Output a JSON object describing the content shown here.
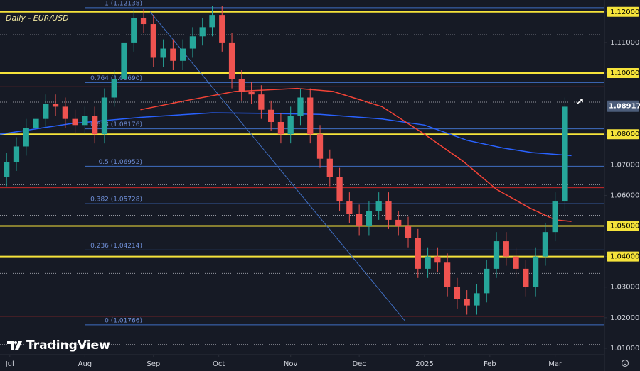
{
  "chart_data": {
    "type": "candlestick",
    "title": "Daily - EUR/USD",
    "watermark": "TradingView",
    "up_color": "#26a69a",
    "down_color": "#ef5350",
    "x": [
      0,
      3,
      6,
      9,
      12,
      15,
      18,
      21,
      24,
      27,
      30,
      33,
      36,
      39,
      42,
      45,
      48,
      51,
      54,
      57,
      60,
      63,
      66,
      69,
      72,
      75,
      78,
      81,
      84,
      87,
      90,
      93,
      96,
      99,
      102,
      105,
      108,
      111,
      114,
      117,
      120,
      123,
      126,
      129,
      132,
      135,
      138,
      141,
      144,
      147,
      150,
      153,
      156,
      159,
      162,
      165,
      168,
      171
    ],
    "open": [
      1.066,
      1.071,
      1.076,
      1.082,
      1.085,
      1.09,
      1.089,
      1.085,
      1.083,
      1.086,
      1.08,
      1.092,
      1.098,
      1.11,
      1.118,
      1.116,
      1.105,
      1.108,
      1.104,
      1.108,
      1.112,
      1.115,
      1.119,
      1.11,
      1.098,
      1.094,
      1.093,
      1.088,
      1.084,
      1.08,
      1.086,
      1.092,
      1.08,
      1.072,
      1.066,
      1.058,
      1.054,
      1.05,
      1.055,
      1.058,
      1.052,
      1.05,
      1.046,
      1.036,
      1.04,
      1.038,
      1.03,
      1.026,
      1.024,
      1.028,
      1.036,
      1.045,
      1.04,
      1.036,
      1.03,
      1.04,
      1.048,
      1.058
    ],
    "high": [
      1.074,
      1.079,
      1.085,
      1.088,
      1.093,
      1.093,
      1.092,
      1.088,
      1.089,
      1.089,
      1.095,
      1.101,
      1.113,
      1.121,
      1.121,
      1.119,
      1.111,
      1.111,
      1.111,
      1.115,
      1.118,
      1.122,
      1.122,
      1.113,
      1.101,
      1.097,
      1.096,
      1.091,
      1.087,
      1.089,
      1.095,
      1.095,
      1.083,
      1.075,
      1.069,
      1.061,
      1.057,
      1.058,
      1.061,
      1.061,
      1.055,
      1.053,
      1.049,
      1.043,
      1.043,
      1.041,
      1.033,
      1.029,
      1.031,
      1.039,
      1.048,
      1.048,
      1.043,
      1.039,
      1.043,
      1.051,
      1.061,
      1.092
    ],
    "low": [
      1.063,
      1.068,
      1.073,
      1.079,
      1.082,
      1.086,
      1.082,
      1.08,
      1.08,
      1.077,
      1.077,
      1.089,
      1.095,
      1.107,
      1.113,
      1.102,
      1.102,
      1.101,
      1.101,
      1.105,
      1.109,
      1.112,
      1.107,
      1.095,
      1.091,
      1.09,
      1.085,
      1.081,
      1.077,
      1.077,
      1.083,
      1.077,
      1.069,
      1.063,
      1.055,
      1.051,
      1.047,
      1.047,
      1.052,
      1.049,
      1.047,
      1.043,
      1.033,
      1.033,
      1.035,
      1.027,
      1.023,
      1.021,
      1.021,
      1.025,
      1.033,
      1.037,
      1.033,
      1.027,
      1.027,
      1.037,
      1.045,
      1.055
    ],
    "close": [
      1.071,
      1.076,
      1.082,
      1.085,
      1.09,
      1.089,
      1.085,
      1.083,
      1.086,
      1.08,
      1.092,
      1.098,
      1.11,
      1.118,
      1.116,
      1.105,
      1.108,
      1.104,
      1.108,
      1.112,
      1.115,
      1.119,
      1.11,
      1.098,
      1.094,
      1.093,
      1.088,
      1.084,
      1.08,
      1.086,
      1.092,
      1.08,
      1.072,
      1.066,
      1.058,
      1.054,
      1.05,
      1.055,
      1.058,
      1.052,
      1.05,
      1.046,
      1.036,
      1.04,
      1.038,
      1.03,
      1.026,
      1.024,
      1.028,
      1.036,
      1.045,
      1.04,
      1.036,
      1.03,
      1.04,
      1.048,
      1.058,
      1.089
    ],
    "moving_averages": [
      {
        "color": "#2962ff",
        "x": [
          -2,
          20,
          41,
          63,
          80,
          96,
          115,
          128,
          141,
          152,
          161,
          173
        ],
        "values": [
          1.08,
          1.0835,
          1.0855,
          1.087,
          1.0868,
          1.0865,
          1.085,
          1.083,
          1.078,
          1.0755,
          1.074,
          1.073
        ]
      },
      {
        "color": "#f44336",
        "x": [
          41,
          55,
          70,
          80,
          89,
          100,
          115,
          128,
          140,
          150,
          160,
          168,
          173
        ],
        "values": [
          1.088,
          1.091,
          1.094,
          1.0945,
          1.095,
          1.094,
          1.089,
          1.08,
          1.071,
          1.062,
          1.056,
          1.052,
          1.0515
        ]
      }
    ],
    "trendline": {
      "color": "#3f6ec2",
      "x": [
        44,
        122
      ],
      "values": [
        1.12,
        1.019
      ]
    },
    "levels": [
      {
        "style": "dotted",
        "color": "#9598a1",
        "values": [
          1.1125,
          1.0905,
          1.0635,
          1.0535,
          1.0345,
          1.0112
        ]
      },
      {
        "style": "thin",
        "color": "#c62828",
        "values": [
          1.0955,
          1.0625,
          1.0205
        ]
      },
      {
        "style": "thick",
        "color": "#f5e33b",
        "values": [
          1.12,
          1.1,
          1.08,
          1.05,
          1.04
        ]
      }
    ],
    "fib": {
      "color": "#3f6ec2",
      "levels": [
        {
          "value": 1.12138,
          "label": "1 (1.12138)"
        },
        {
          "value": 1.0969,
          "label": "0.764 (1.09690)"
        },
        {
          "value": 1.08176,
          "label": "0.618 (1.08176)"
        },
        {
          "value": 1.06952,
          "label": "0.5 (1.06952)"
        },
        {
          "value": 1.05728,
          "label": "0.382 (1.05728)"
        },
        {
          "value": 1.04214,
          "label": "0.236 (1.04214)"
        },
        {
          "value": 1.01766,
          "label": "0 (1.01766)"
        }
      ]
    },
    "last_price": 1.08917,
    "last_price_color": "#4c5d7a",
    "xlim": [
      -2,
      183.1
    ],
    "ylim": [
      1.0079,
      1.1239
    ],
    "xticks": [
      {
        "value": 1,
        "label": "Jul"
      },
      {
        "value": 24,
        "label": "Aug"
      },
      {
        "value": 45,
        "label": "Sep"
      },
      {
        "value": 65,
        "label": "Oct"
      },
      {
        "value": 87,
        "label": "Nov"
      },
      {
        "value": 108,
        "label": "Dec"
      },
      {
        "value": 128,
        "label": "2025"
      },
      {
        "value": 148,
        "label": "Feb"
      },
      {
        "value": 168,
        "label": "Mar"
      }
    ],
    "yticks": [
      {
        "value": 1.12,
        "label": "1.12000"
      },
      {
        "value": 1.11,
        "label": "1.11000"
      },
      {
        "value": 1.1,
        "label": "1.10000"
      },
      {
        "value": 1.08,
        "label": "1.08000"
      },
      {
        "value": 1.07,
        "label": "1.07000"
      },
      {
        "value": 1.06,
        "label": "1.06000"
      },
      {
        "value": 1.05,
        "label": "1.05000"
      },
      {
        "value": 1.04,
        "label": "1.04000"
      },
      {
        "value": 1.03,
        "label": "1.03000"
      },
      {
        "value": 1.02,
        "label": "1.02000"
      },
      {
        "value": 1.01,
        "label": "1.01000"
      }
    ]
  }
}
